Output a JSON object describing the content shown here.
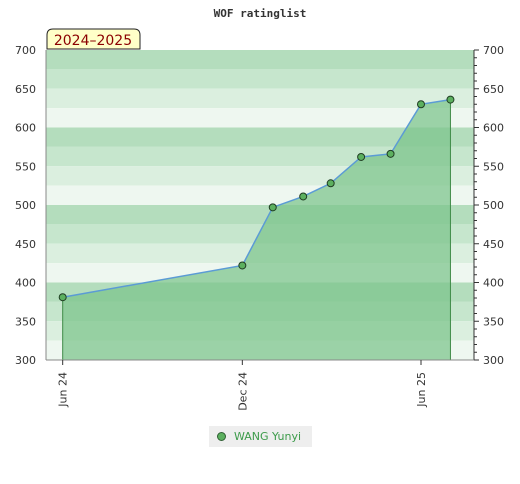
{
  "chart_data": {
    "type": "area",
    "title": "WOF ratinglist",
    "badge": "2024–2025",
    "x_ticks": [
      {
        "date": "2024-06-01",
        "label": "Jun 24"
      },
      {
        "date": "2024-12-01",
        "label": "Dec 24"
      },
      {
        "date": "2025-06-01",
        "label": "Jun 25"
      }
    ],
    "xlim": [
      "2024-05-15",
      "2025-07-25"
    ],
    "ylim": [
      300,
      700
    ],
    "y_ticks": [
      300,
      350,
      400,
      450,
      500,
      550,
      600,
      650,
      700
    ],
    "grid": true,
    "legend_position": "bottom",
    "series": [
      {
        "name": "WANG Yunyi",
        "points": [
          {
            "x": "2024-06-01",
            "y": 381
          },
          {
            "x": "2024-12-01",
            "y": 422
          },
          {
            "x": "2025-01-01",
            "y": 497
          },
          {
            "x": "2025-02-01",
            "y": 511
          },
          {
            "x": "2025-03-01",
            "y": 528
          },
          {
            "x": "2025-04-01",
            "y": 562
          },
          {
            "x": "2025-05-01",
            "y": 566
          },
          {
            "x": "2025-06-01",
            "y": 630
          },
          {
            "x": "2025-07-01",
            "y": 636
          }
        ]
      }
    ]
  },
  "colors": {
    "fill": "#7cc48a",
    "line": "#5b9bd5",
    "marker": "#5cb05f",
    "legend_text": "#3c9b4a"
  }
}
